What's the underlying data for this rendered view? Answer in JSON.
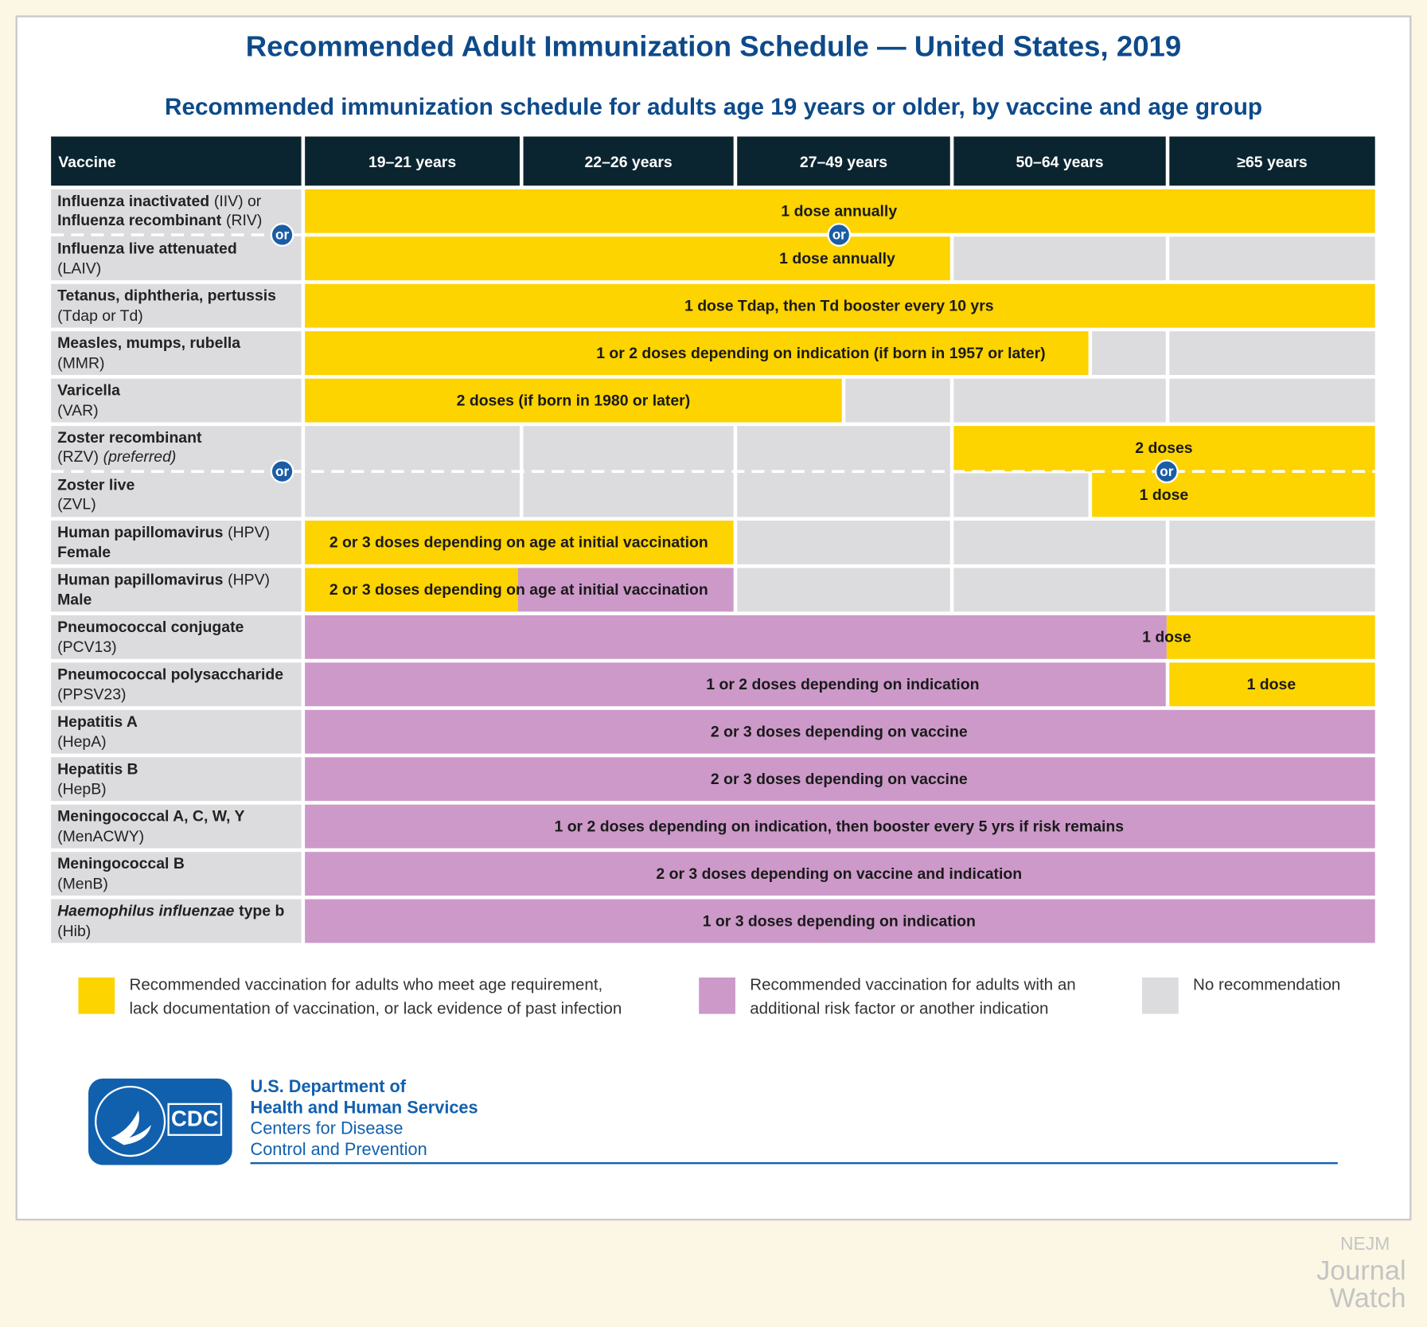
{
  "header": {
    "title": "Recommended Adult Immunization Schedule — United States, 2019",
    "subtitle": "Recommended immunization schedule for adults age 19 years or older, by vaccine and age group"
  },
  "table": {
    "columns": [
      "Vaccine",
      "19–21 years",
      "22–26 years",
      "27–49 years",
      "50–64 years",
      "≥65 years"
    ],
    "connector": "or",
    "rows": [
      {
        "name": [
          [
            "Influenza inactivated",
            "(IIV) or"
          ],
          [
            "Influenza recombinant",
            "(RIV)"
          ],
          [
            "Influenza live attenuated"
          ],
          [
            "(LAIV)"
          ]
        ],
        "schedule": [
          "1 dose annually",
          "1 dose annually"
        ]
      },
      {
        "name": [
          [
            "Tetanus, diphtheria, pertussis"
          ],
          [
            "(Tdap or Td)"
          ]
        ],
        "schedule": [
          "1 dose Tdap, then Td booster every 10 yrs"
        ]
      },
      {
        "name": [
          [
            "Measles, mumps, rubella"
          ],
          [
            "(MMR)"
          ]
        ],
        "schedule": [
          "1 or 2 doses depending on indication (if born in 1957 or later)"
        ]
      },
      {
        "name": [
          [
            "Varicella"
          ],
          [
            "(VAR)"
          ]
        ],
        "schedule": [
          "2 doses (if born in 1980 or later)"
        ]
      },
      {
        "name": [
          [
            "Zoster recombinant"
          ],
          [
            "(RZV)",
            "(preferred)"
          ],
          [
            "Zoster live"
          ],
          [
            "(ZVL)"
          ]
        ],
        "schedule": [
          "2 doses",
          "1 dose"
        ]
      },
      {
        "name": [
          [
            "Human papillomavirus",
            "(HPV)"
          ],
          [
            "Female"
          ]
        ],
        "schedule": [
          "2 or 3 doses depending on age at initial vaccination"
        ]
      },
      {
        "name": [
          [
            "Human papillomavirus",
            "(HPV)"
          ],
          [
            "Male"
          ]
        ],
        "schedule": [
          "2 or 3 doses depending on age at initial vaccination"
        ]
      },
      {
        "name": [
          [
            "Pneumococcal conjugate"
          ],
          [
            "(PCV13)"
          ]
        ],
        "schedule": [
          "1 dose"
        ]
      },
      {
        "name": [
          [
            "Pneumococcal polysaccharide"
          ],
          [
            "(PPSV23)"
          ]
        ],
        "schedule": [
          "1 or 2 doses depending on indication",
          "1 dose"
        ]
      },
      {
        "name": [
          [
            "Hepatitis A"
          ],
          [
            "(HepA)"
          ]
        ],
        "schedule": [
          "2 or 3 doses depending on vaccine"
        ]
      },
      {
        "name": [
          [
            "Hepatitis B"
          ],
          [
            "(HepB)"
          ]
        ],
        "schedule": [
          "2 or 3 doses depending on vaccine"
        ]
      },
      {
        "name": [
          [
            "Meningococcal A, C, W, Y"
          ],
          [
            "(MenACWY)"
          ]
        ],
        "schedule": [
          "1 or 2 doses depending on indication, then booster every 5 yrs if risk remains"
        ]
      },
      {
        "name": [
          [
            "Meningococcal B"
          ],
          [
            "(MenB)"
          ]
        ],
        "schedule": [
          "2 or 3 doses depending on vaccine and indication"
        ]
      },
      {
        "name": [
          [
            "Haemophilus influenzae",
            "type b"
          ],
          [
            "(Hib)"
          ]
        ],
        "schedule": [
          "1 or 3 doses depending on indication"
        ]
      }
    ]
  },
  "legend": [
    [
      "Recommended vaccination for adults who meet age requirement,",
      "lack documentation of vaccination, or lack evidence of past infection"
    ],
    [
      "Recommended vaccination for adults with an",
      "additional risk factor or another indication"
    ],
    [
      "No recommendation"
    ]
  ],
  "footer": {
    "logo": "CDC",
    "agency": [
      "U.S. Department of",
      "Health and Human Services",
      "Centers for Disease",
      "Control and Prevention"
    ]
  },
  "watermark": [
    "NEJM",
    "Journal",
    "Watch"
  ]
}
